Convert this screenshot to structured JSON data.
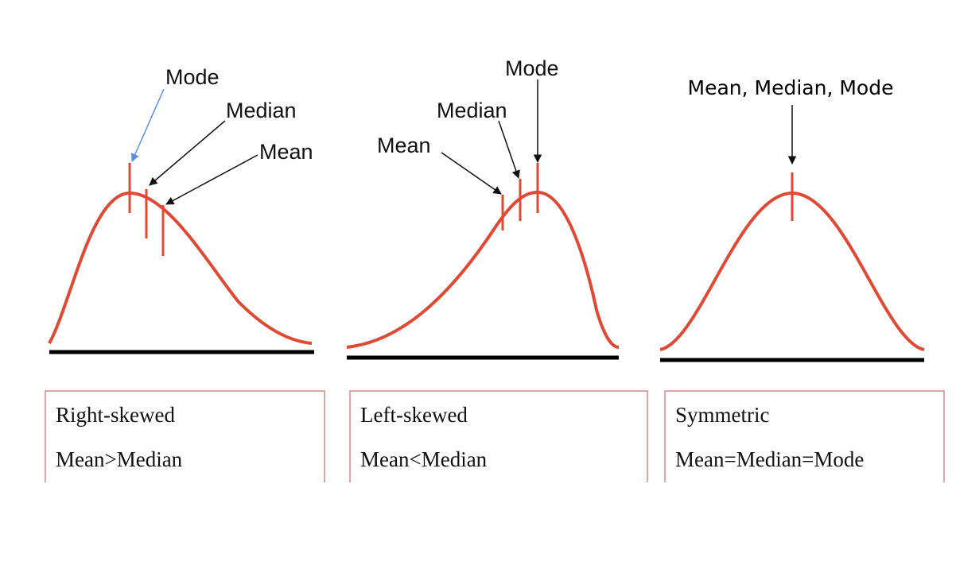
{
  "panels": [
    {
      "labels": [
        "Mode",
        "Median",
        "Mean"
      ],
      "caption": [
        "Right-skewed",
        "Mean>Median"
      ]
    },
    {
      "labels": [
        "Mean",
        "Median",
        "Mode"
      ],
      "caption": [
        "Left-skewed",
        "Mean<Median"
      ]
    },
    {
      "labels": [
        "Mean, Median, Mode"
      ],
      "caption": [
        "Symmetric",
        "Mean=Median=Mode"
      ]
    }
  ]
}
